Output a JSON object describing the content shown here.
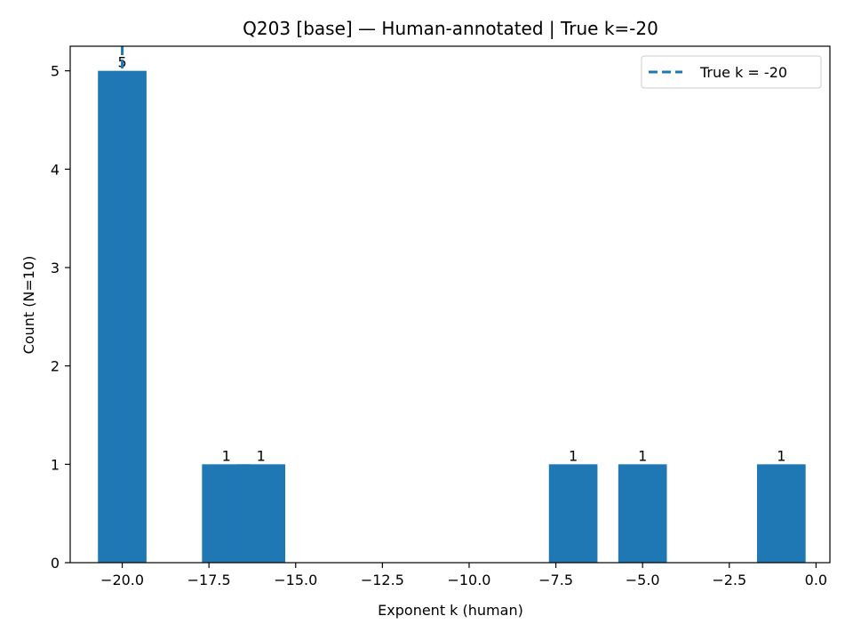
{
  "chart_data": {
    "type": "bar",
    "title": "Q203 [base] — Human-annotated | True k=-20",
    "xlabel": "Exponent k (human)",
    "ylabel": "Count (N=10)",
    "x": [
      -20,
      -17,
      -16,
      -7,
      -5,
      -1
    ],
    "values": [
      5,
      1,
      1,
      1,
      1,
      1
    ],
    "bar_labels": [
      "5",
      "1",
      "1",
      "1",
      "1",
      "1"
    ],
    "xlim": [
      -21.5,
      0.4
    ],
    "ylim": [
      0,
      5.25
    ],
    "xticks": [
      -20.0,
      -17.5,
      -15.0,
      -12.5,
      -10.0,
      -7.5,
      -5.0,
      -2.5,
      0.0
    ],
    "xtick_labels": [
      "−20.0",
      "−17.5",
      "−15.0",
      "−12.5",
      "−10.0",
      "−7.5",
      "−5.0",
      "−2.5",
      "0.0"
    ],
    "yticks": [
      0,
      1,
      2,
      3,
      4,
      5
    ],
    "ytick_labels": [
      "0",
      "1",
      "2",
      "3",
      "4",
      "5"
    ],
    "reference_line": {
      "x": -20,
      "style": "dashed",
      "label": "True k = -20"
    },
    "legend": {
      "position": "upper-right",
      "entries": [
        "True k = -20"
      ]
    },
    "grid": false,
    "colors": {
      "bar": "#1f77b4",
      "reference_line": "#1f77b4"
    }
  }
}
